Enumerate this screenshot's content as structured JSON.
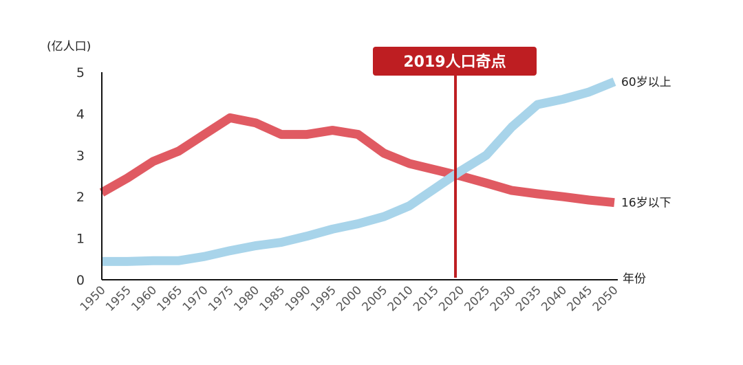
{
  "chart_data": {
    "type": "line",
    "y_unit_label": "(亿人口)",
    "x_axis_label": "年份",
    "ylim": [
      0,
      5
    ],
    "y_ticks": [
      "0",
      "1",
      "2",
      "3",
      "4",
      "5"
    ],
    "x": [
      1950,
      1955,
      1960,
      1965,
      1970,
      1975,
      1980,
      1985,
      1990,
      1995,
      2000,
      2005,
      2010,
      2015,
      2020,
      2025,
      2030,
      2035,
      2040,
      2045,
      2050
    ],
    "x_tick_labels": [
      "1950",
      "1955",
      "1960",
      "1965",
      "1970",
      "1975",
      "1980",
      "1985",
      "1990",
      "1995",
      "2000",
      "2005",
      "2010",
      "2015",
      "2020",
      "2025",
      "2030",
      "2035",
      "2040",
      "2045",
      "2050"
    ],
    "series": [
      {
        "name": "16岁以下",
        "color": "#e05a62",
        "values": [
          2.1,
          2.45,
          2.85,
          3.1,
          3.5,
          3.9,
          3.78,
          3.5,
          3.5,
          3.6,
          3.5,
          3.05,
          2.8,
          2.65,
          2.5,
          2.33,
          2.15,
          2.07,
          2.0,
          1.92,
          1.86
        ]
      },
      {
        "name": "60岁以上",
        "color": "#a8d4ea",
        "values": [
          0.44,
          0.44,
          0.46,
          0.46,
          0.56,
          0.7,
          0.82,
          0.9,
          1.05,
          1.22,
          1.35,
          1.52,
          1.78,
          2.2,
          2.62,
          3.0,
          3.68,
          4.22,
          4.35,
          4.52,
          4.77
        ]
      }
    ],
    "marker": {
      "label": "2019人口奇点",
      "x": 2019,
      "color": "#be1e22"
    }
  }
}
